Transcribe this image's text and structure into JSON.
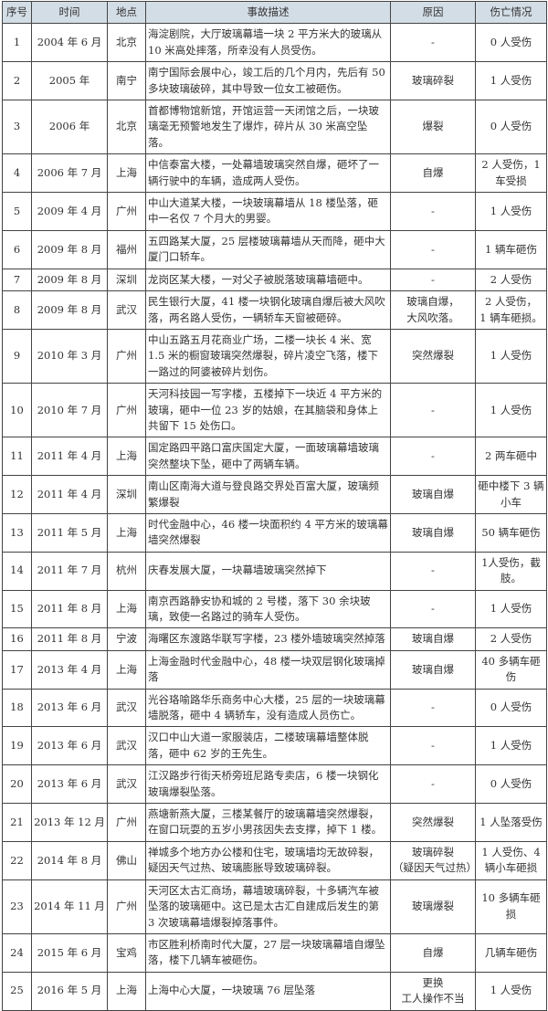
{
  "headers": [
    "序号",
    "时间",
    "地点",
    "事故描述",
    "原因",
    "伤亡情况"
  ],
  "rows": [
    {
      "no": "1",
      "time": "2004 年 6 月",
      "place": "北京",
      "desc": "海淀剧院，大厅玻璃幕墙一块 2 平方米大的玻璃从 10 米高处摔落，所幸没有人员受伤。",
      "cause": "-",
      "harm": "0 人受伤"
    },
    {
      "no": "2",
      "time": "2005 年",
      "place": "南宁",
      "desc": "南宁国际会展中心，竣工后的几个月内，先后有 50 多块玻璃破碎，其中导致一位女工被砸伤。",
      "cause": "玻璃碎裂",
      "harm": "1 人受伤"
    },
    {
      "no": "3",
      "time": "2006 年",
      "place": "北京",
      "desc": "首都博物馆新馆，开馆运营一天闭馆之后，一块玻璃毫无预警地发生了爆炸，碎片从 30 米高空坠落。",
      "cause": "爆裂",
      "harm": "0 人受伤"
    },
    {
      "no": "4",
      "time": "2006 年 7 月",
      "place": "上海",
      "desc": "中信泰富大楼，一处幕墙玻璃突然自爆，砸坏了一辆行驶中的车辆，造成两人受伤。",
      "cause": "自爆",
      "harm": "2 人受伤，1 车受损"
    },
    {
      "no": "5",
      "time": "2009 年 4 月",
      "place": "广州",
      "desc": "中山大道某大楼，一块玻璃幕墙从 18 楼坠落，砸中一名仅 7 个月大的男婴。",
      "cause": "-",
      "harm": "1 人受伤"
    },
    {
      "no": "6",
      "time": "2009 年 8 月",
      "place": "福州",
      "desc": "五四路某大厦，25 层楼玻璃幕墙从天而降，砸中大厦门口轿车。",
      "cause": "-",
      "harm": "1 辆车砸伤"
    },
    {
      "no": "7",
      "time": "2009 年 8 月",
      "place": "深圳",
      "desc": "龙岗区某大楼，一对父子被脱落玻璃幕墙砸中。",
      "cause": "-",
      "harm": "2 人受伤"
    },
    {
      "no": "8",
      "time": "2009 年 8 月",
      "place": "武汉",
      "desc": "民生银行大厦，41 楼一块钢化玻璃自爆后被大风吹落，两名路人受伤，一辆轿车天窗被砸碎。",
      "cause": "玻璃自爆，\n大风吹落。",
      "harm": "2 人受伤，\n1 辆车砸损。"
    },
    {
      "no": "9",
      "time": "2010 年 3 月",
      "place": "广州",
      "desc": "中山五路五月花商业广场，二楼一块长 4 米、宽 1.5 米的橱窗玻璃突然爆裂，碎片凌空飞落，楼下一路过的阿婆被碎片划伤。",
      "cause": "突然爆裂",
      "harm": "1 人受伤"
    },
    {
      "no": "10",
      "time": "2010 年 7 月",
      "place": "广州",
      "desc": "天河科技园一写字楼，五楼掉下一块近 4 平方米的玻璃，砸中一位 23 岁的姑娘，在其脑袋和身体上共留下 15 处伤口。",
      "cause": "-",
      "harm": "1 人受伤"
    },
    {
      "no": "11",
      "time": "2011 年 4 月",
      "place": "上海",
      "desc": "国定路四平路口富庆国定大厦，一面玻璃幕墙玻璃突然整块下坠，砸中了两辆车辆。",
      "cause": "-",
      "harm": "2 两车砸中"
    },
    {
      "no": "12",
      "time": "2011 年 4 月",
      "place": "深圳",
      "desc": "南山区南海大道与登良路交界处百富大厦，玻璃频繁爆裂",
      "cause": "玻璃自爆",
      "harm": "砸中楼下 3 辆小车"
    },
    {
      "no": "13",
      "time": "2011 年 5 月",
      "place": "上海",
      "desc": "时代金融中心，46 楼一块面积约 4 平方米的玻璃幕墙突然爆裂",
      "cause": "玻璃自爆",
      "harm": "50 辆车砸伤"
    },
    {
      "no": "14",
      "time": "2011 年 7 月",
      "place": "杭州",
      "desc": "庆春发展大厦，一块幕墙玻璃突然掉下",
      "cause": "-",
      "harm": "1人受伤，截肢。"
    },
    {
      "no": "15",
      "time": "2011 年 8 月",
      "place": "上海",
      "desc": "南京西路静安协和城的 2 号楼，落下 30 余块玻璃，致使一名路过的骑车人受伤。",
      "cause": "-",
      "harm": "1 人受伤"
    },
    {
      "no": "16",
      "time": "2011 年 8 月",
      "place": "宁波",
      "desc": "海曙区东渡路华联写字楼，23 楼外墙玻璃突然掉落",
      "cause": "玻璃自爆",
      "harm": "2 人受伤"
    },
    {
      "no": "17",
      "time": "2013 年 4 月",
      "place": "上海",
      "desc": "上海金融时代金融中心，48 楼一块双层钢化玻璃掉落",
      "cause": "玻璃自爆",
      "harm": "40 多辆车砸伤"
    },
    {
      "no": "18",
      "time": "2013 年 6 月",
      "place": "武汉",
      "desc": "光谷珞喻路华乐商务中心大楼，25 层的一块玻璃幕墙脱落，砸中 4 辆轿车，没有造成人员伤亡。",
      "cause": "-",
      "harm": "0 人受伤"
    },
    {
      "no": "19",
      "time": "2013 年 6 月",
      "place": "武汉",
      "desc": "汉口中山大道一家服装店，二楼玻璃幕墙整体脱落，砸中 62 岁的王先生。",
      "cause": "-",
      "harm": "1 人受伤"
    },
    {
      "no": "20",
      "time": "2013 年 6 月",
      "place": "武汉",
      "desc": "江汉路步行街天桥旁班尼路专卖店，6 楼一块钢化玻璃爆裂坠落。",
      "cause": "-",
      "harm": "0 人受伤"
    },
    {
      "no": "21",
      "time": "2013 年 12 月",
      "place": "广州",
      "desc": "燕塘新燕大厦，三楼某餐厅的玻璃幕墙突然爆裂，在窗口玩耍的五岁小男孩因失去支撑，掉下 1 楼。",
      "cause": "突然爆裂",
      "harm": "1 人坠落受伤"
    },
    {
      "no": "22",
      "time": "2014 年 8 月",
      "place": "佛山",
      "desc": "禅城多个地方办公楼和住宅，玻璃墙均无故碎裂，疑因天气过热、玻璃膨胀导致玻璃碎裂。",
      "cause": "玻璃碎裂\n（疑因天气过热）",
      "harm": "1 人受伤、4 辆小车砸损"
    },
    {
      "no": "23",
      "time": "2014 年 11 月",
      "place": "广州",
      "desc": "天河区太古汇商场，幕墙玻璃碎裂，十多辆汽车被坠落的玻璃砸中。这已是太古汇自建成后发生的第 3 次玻璃幕墙爆裂掉落事件。",
      "cause": "玻璃爆裂",
      "harm": "10 多辆车砸损"
    },
    {
      "no": "24",
      "time": "2015 年 6 月",
      "place": "宝鸡",
      "desc": "市区胜利桥南时代大厦，27 层一块玻璃幕墙自爆坠落，楼下几辆车被砸伤。",
      "cause": "自爆",
      "harm": "几辆车砸伤"
    },
    {
      "no": "25",
      "time": "2016 年 5 月",
      "place": "上海",
      "desc": "上海中心大厦，一块玻璃 76 层坠落",
      "cause": "更换\n工人操作不当",
      "harm": "1 人受伤"
    }
  ]
}
